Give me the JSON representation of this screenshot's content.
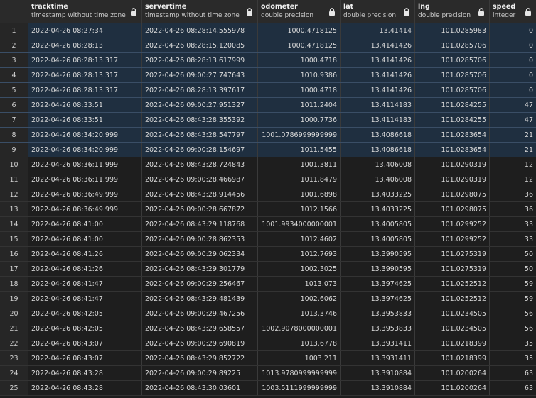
{
  "columns": [
    {
      "name": "",
      "type": ""
    },
    {
      "name": "tracktime",
      "type": "timestamp without time zone"
    },
    {
      "name": "servertime",
      "type": "timestamp without time zone"
    },
    {
      "name": "odometer",
      "type": "double precision"
    },
    {
      "name": "lat",
      "type": "double precision"
    },
    {
      "name": "lng",
      "type": "double precision"
    },
    {
      "name": "speed",
      "type": "integer"
    }
  ],
  "rows": [
    [
      "1",
      "2022-04-26 08:27:34",
      "2022-04-26 08:28:14.555978",
      "1000.4718125",
      "13.41414",
      "101.0285983",
      "0"
    ],
    [
      "2",
      "2022-04-26 08:28:13",
      "2022-04-26 08:28:15.120085",
      "1000.4718125",
      "13.4141426",
      "101.0285706",
      "0"
    ],
    [
      "3",
      "2022-04-26 08:28:13.317",
      "2022-04-26 08:28:13.617999",
      "1000.4718",
      "13.4141426",
      "101.0285706",
      "0"
    ],
    [
      "4",
      "2022-04-26 08:28:13.317",
      "2022-04-26 09:00:27.747643",
      "1010.9386",
      "13.4141426",
      "101.0285706",
      "0"
    ],
    [
      "5",
      "2022-04-26 08:28:13.317",
      "2022-04-26 08:28:13.397617",
      "1000.4718",
      "13.4141426",
      "101.0285706",
      "0"
    ],
    [
      "6",
      "2022-04-26 08:33:51",
      "2022-04-26 09:00:27.951327",
      "1011.2404",
      "13.4114183",
      "101.0284255",
      "47"
    ],
    [
      "7",
      "2022-04-26 08:33:51",
      "2022-04-26 08:43:28.355392",
      "1000.7736",
      "13.4114183",
      "101.0284255",
      "47"
    ],
    [
      "8",
      "2022-04-26 08:34:20.999",
      "2022-04-26 08:43:28.547797",
      "1001.0786999999999",
      "13.4086618",
      "101.0283654",
      "21"
    ],
    [
      "9",
      "2022-04-26 08:34:20.999",
      "2022-04-26 09:00:28.154697",
      "1011.5455",
      "13.4086618",
      "101.0283654",
      "21"
    ],
    [
      "10",
      "2022-04-26 08:36:11.999",
      "2022-04-26 08:43:28.724843",
      "1001.3811",
      "13.406008",
      "101.0290319",
      "12"
    ],
    [
      "11",
      "2022-04-26 08:36:11.999",
      "2022-04-26 09:00:28.466987",
      "1011.8479",
      "13.406008",
      "101.0290319",
      "12"
    ],
    [
      "12",
      "2022-04-26 08:36:49.999",
      "2022-04-26 08:43:28.914456",
      "1001.6898",
      "13.4033225",
      "101.0298075",
      "36"
    ],
    [
      "13",
      "2022-04-26 08:36:49.999",
      "2022-04-26 09:00:28.667872",
      "1012.1566",
      "13.4033225",
      "101.0298075",
      "36"
    ],
    [
      "14",
      "2022-04-26 08:41:00",
      "2022-04-26 08:43:29.118768",
      "1001.9934000000001",
      "13.4005805",
      "101.0299252",
      "33"
    ],
    [
      "15",
      "2022-04-26 08:41:00",
      "2022-04-26 09:00:28.862353",
      "1012.4602",
      "13.4005805",
      "101.0299252",
      "33"
    ],
    [
      "16",
      "2022-04-26 08:41:26",
      "2022-04-26 09:00:29.062334",
      "1012.7693",
      "13.3990595",
      "101.0275319",
      "50"
    ],
    [
      "17",
      "2022-04-26 08:41:26",
      "2022-04-26 08:43:29.301779",
      "1002.3025",
      "13.3990595",
      "101.0275319",
      "50"
    ],
    [
      "18",
      "2022-04-26 08:41:47",
      "2022-04-26 09:00:29.256467",
      "1013.073",
      "13.3974625",
      "101.0252512",
      "59"
    ],
    [
      "19",
      "2022-04-26 08:41:47",
      "2022-04-26 08:43:29.481439",
      "1002.6062",
      "13.3974625",
      "101.0252512",
      "59"
    ],
    [
      "20",
      "2022-04-26 08:42:05",
      "2022-04-26 09:00:29.467256",
      "1013.3746",
      "13.3953833",
      "101.0234505",
      "56"
    ],
    [
      "21",
      "2022-04-26 08:42:05",
      "2022-04-26 08:43:29.658557",
      "1002.9078000000001",
      "13.3953833",
      "101.0234505",
      "56"
    ],
    [
      "22",
      "2022-04-26 08:43:07",
      "2022-04-26 09:00:29.690819",
      "1013.6778",
      "13.3931411",
      "101.0218399",
      "35"
    ],
    [
      "23",
      "2022-04-26 08:43:07",
      "2022-04-26 08:43:29.852722",
      "1003.211",
      "13.3931411",
      "101.0218399",
      "35"
    ],
    [
      "24",
      "2022-04-26 08:43:28",
      "2022-04-26 09:00:29.89225",
      "1013.9780999999999",
      "13.3910884",
      "101.0200264",
      "63"
    ],
    [
      "25",
      "2022-04-26 08:43:28",
      "2022-04-26 08:43:30.03601",
      "1003.5111999999999",
      "13.3910884",
      "101.0200264",
      "63"
    ]
  ],
  "selected_rows": [
    1,
    2,
    3,
    4,
    5,
    6,
    7,
    8,
    9
  ],
  "icons": {
    "column_lock": "lock-icon"
  },
  "colors": {
    "background": "#1e1e1e",
    "selected_row": "#1f2f40",
    "header": "#2a2a2a"
  }
}
